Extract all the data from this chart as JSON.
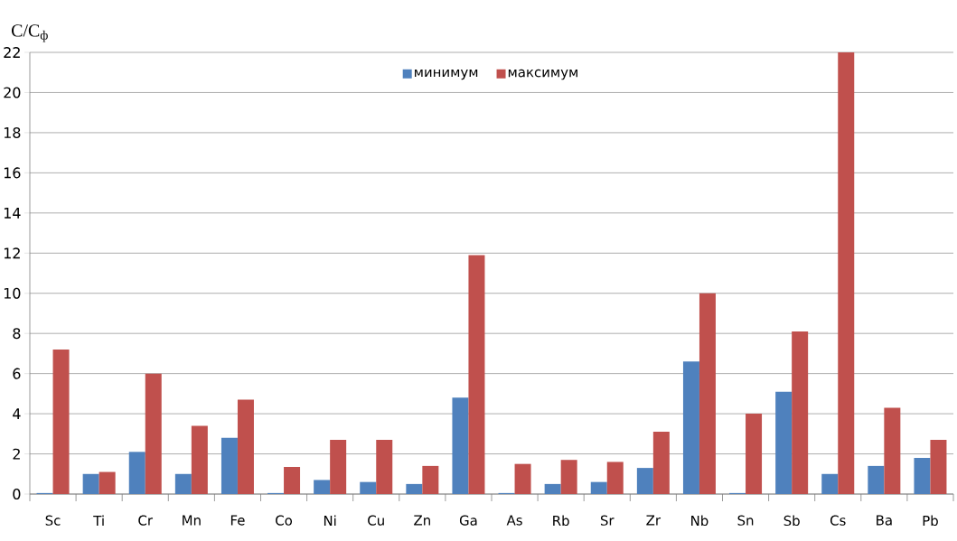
{
  "chart_data": {
    "type": "bar",
    "ylabel": "C/C$_{ф}$",
    "categories": [
      "Sc",
      "Ti",
      "Cr",
      "Mn",
      "Fe",
      "Co",
      "Ni",
      "Cu",
      "Zn",
      "Ga",
      "As",
      "Rb",
      "Sr",
      "Zr",
      "Nb",
      "Sn",
      "Sb",
      "Cs",
      "Ba",
      "Pb"
    ],
    "series": [
      {
        "name": "минимум",
        "color": "#4f81bd",
        "values": [
          0.05,
          1.0,
          2.1,
          1.0,
          2.8,
          0.05,
          0.7,
          0.6,
          0.5,
          4.8,
          0.05,
          0.5,
          0.6,
          1.3,
          6.6,
          0.05,
          5.1,
          1.0,
          1.4,
          1.8
        ]
      },
      {
        "name": "максимум",
        "color": "#c0504d",
        "values": [
          7.2,
          1.1,
          6.0,
          3.4,
          4.7,
          1.35,
          2.7,
          2.7,
          1.4,
          11.9,
          1.5,
          1.7,
          1.6,
          3.1,
          10.0,
          4.0,
          8.1,
          22,
          4.3,
          2.7
        ]
      }
    ],
    "ylim": [
      0,
      22
    ],
    "yticks": [
      0,
      2,
      4,
      6,
      8,
      10,
      12,
      14,
      16,
      18,
      20,
      22
    ],
    "grid": "y",
    "legend": "top"
  }
}
